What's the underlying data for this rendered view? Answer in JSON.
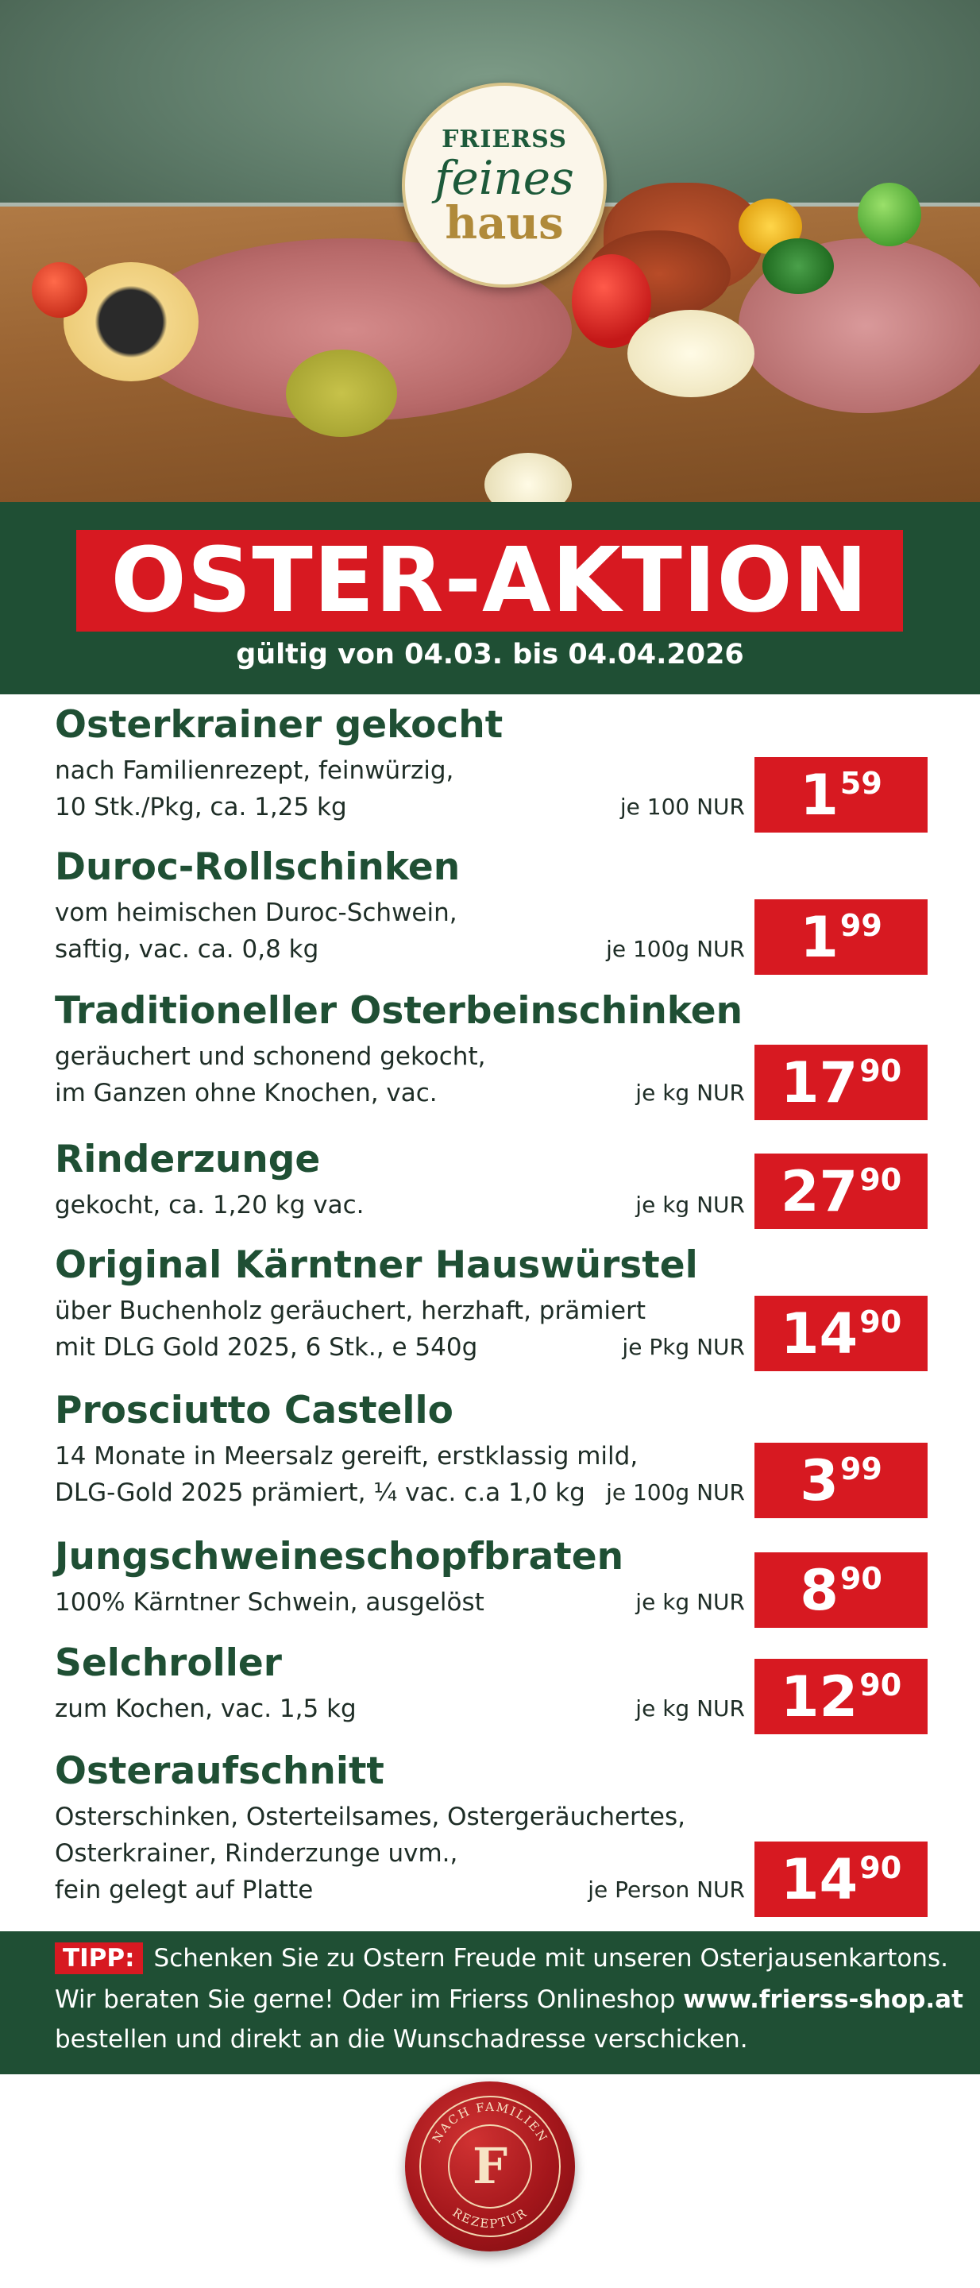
{
  "logo": {
    "brand": "FRIERSS",
    "line1": "feines",
    "line2": "haus"
  },
  "banner": {
    "title": "OSTER-AKTION",
    "validity": "gültig von 04.03. bis 04.04.2026"
  },
  "products": [
    {
      "name": "Osterkrainer gekocht",
      "desc": [
        "nach Familienrezept, feinwürzig,",
        "10 Stk./Pkg, ca. 1,25 kg"
      ],
      "unit": "je 100 NUR",
      "price_int": "1",
      "price_dec": "59"
    },
    {
      "name": "Duroc-Rollschinken",
      "desc": [
        "vom heimischen Duroc-Schwein,",
        "saftig, vac. ca. 0,8 kg"
      ],
      "unit": "je 100g NUR",
      "price_int": "1",
      "price_dec": "99"
    },
    {
      "name": "Traditioneller Osterbeinschinken",
      "desc": [
        "geräuchert und schonend gekocht,",
        "im Ganzen ohne Knochen, vac."
      ],
      "unit": "je kg NUR",
      "price_int": "17",
      "price_dec": "90"
    },
    {
      "name": "Rinderzunge",
      "desc": [
        "gekocht, ca. 1,20 kg vac."
      ],
      "unit": "je kg NUR",
      "price_int": "27",
      "price_dec": "90"
    },
    {
      "name": "Original Kärntner Hauswürstel",
      "desc": [
        "über Buchenholz geräuchert, herzhaft, prämiert",
        "mit DLG Gold 2025, 6 Stk., e 540g"
      ],
      "unit": "je Pkg NUR",
      "price_int": "14",
      "price_dec": "90"
    },
    {
      "name": "Prosciutto Castello",
      "desc": [
        "14 Monate in Meersalz gereift, erstklassig mild,",
        "DLG-Gold 2025 prämiert, ¼ vac. c.a 1,0 kg"
      ],
      "unit": "je 100g NUR",
      "price_int": "3",
      "price_dec": "99"
    },
    {
      "name": "Jungschweineschopfbraten",
      "desc": [
        "100% Kärntner Schwein, ausgelöst"
      ],
      "unit": "je kg NUR",
      "price_int": "8",
      "price_dec": "90"
    },
    {
      "name": "Selchroller",
      "desc": [
        "zum Kochen, vac. 1,5 kg"
      ],
      "unit": "je kg NUR",
      "price_int": "12",
      "price_dec": "90"
    },
    {
      "name": "Osteraufschnitt",
      "desc": [
        "Osterschinken, Osterteilsames, Ostergeräuchertes,",
        "Osterkrainer, Rinderzunge uvm.,",
        "fein gelegt auf Platte"
      ],
      "unit": "je Person NUR",
      "price_int": "14",
      "price_dec": "90"
    }
  ],
  "tipp": {
    "label": "TIPP:",
    "line1": "Schenken Sie zu Ostern Freude mit unseren Osterjausenkartons.",
    "line2_pre": "Wir beraten Sie gerne! Oder im Frierss Onlineshop ",
    "line2_link": "www.frierss-shop.at",
    "line3": "bestellen und direkt an die Wunschadresse verschicken."
  },
  "seal": {
    "text": "NACH FAMILIEN REZEPTUR",
    "letter": "F"
  },
  "colors": {
    "green": "#1f4f34",
    "red": "#d71921"
  }
}
